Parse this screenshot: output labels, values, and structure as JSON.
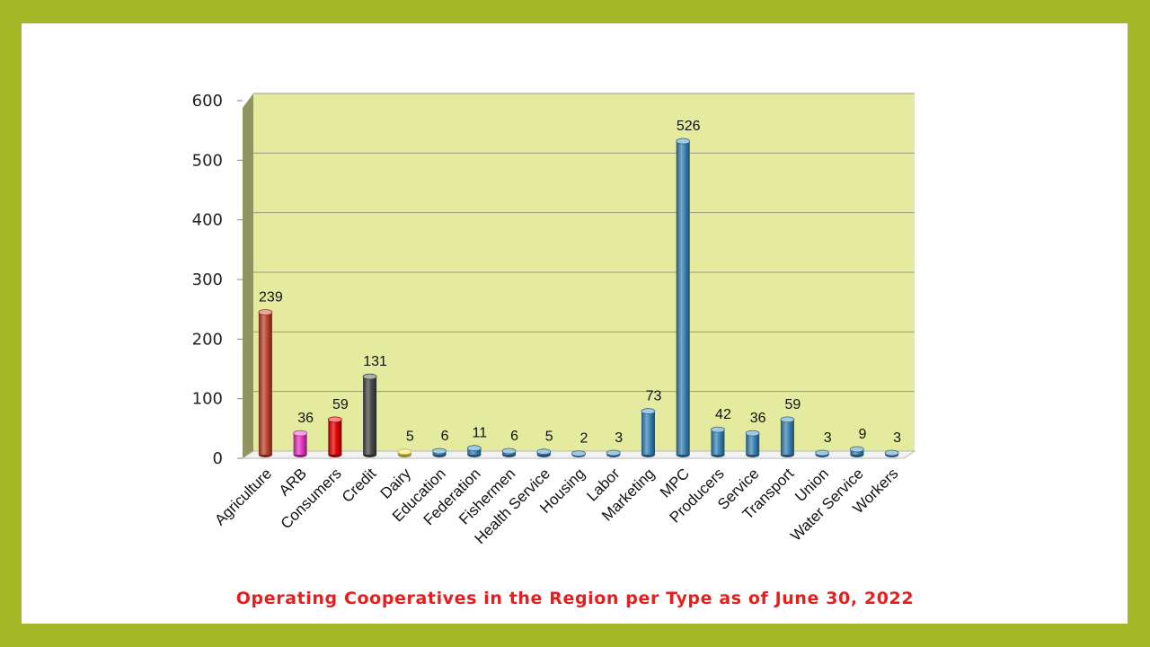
{
  "chart_data": {
    "type": "bar",
    "title": "Operating Cooperatives in the Region per Type as of June 30, 2022",
    "categories": [
      "Agriculture",
      "ARB",
      "Consumers",
      "Credit",
      "Dairy",
      "Education",
      "Federation",
      "Fishermen",
      "Health Service",
      "Housing",
      "Labor",
      "Marketing",
      "MPC",
      "Producers",
      "Service",
      "Transport",
      "Union",
      "Water Service",
      "Workers"
    ],
    "values": [
      239,
      36,
      59,
      131,
      5,
      6,
      11,
      6,
      5,
      2,
      3,
      73,
      526,
      42,
      36,
      59,
      3,
      9,
      3
    ],
    "bar_colors": [
      "#c0442c",
      "#e837c6",
      "#e60000",
      "#4a4a4a",
      "#f2e34a",
      "#3b86b8",
      "#3b86b8",
      "#3b86b8",
      "#3b86b8",
      "#3b86b8",
      "#3b86b8",
      "#3b86b8",
      "#3b86b8",
      "#3b86b8",
      "#3b86b8",
      "#3b86b8",
      "#3b86b8",
      "#3b86b8",
      "#3b86b8"
    ],
    "y_ticks": [
      "0",
      "100",
      "200",
      "300",
      "400",
      "500",
      "600"
    ],
    "ylim": [
      0,
      600
    ],
    "xlabel": "",
    "ylabel": "",
    "grid": true,
    "plot_background": "#e4eb9e",
    "title_color": "#e81e1e",
    "frame_color": "#a5b928"
  }
}
